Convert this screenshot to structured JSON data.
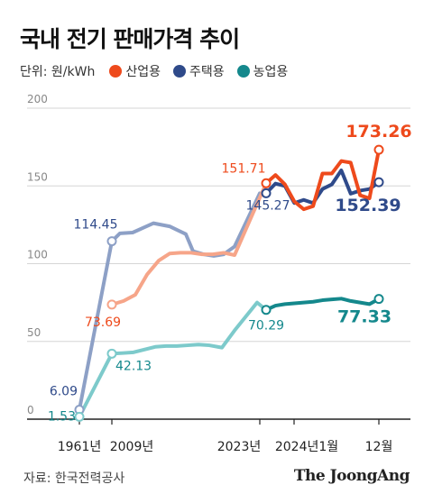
{
  "title": "국내 전기 판매가격 추이",
  "legend": {
    "unit_label": "단위: 원/kWh",
    "items": [
      {
        "label": "산업용",
        "color": "#ee4a1c"
      },
      {
        "label": "주택용",
        "color": "#2f4a8a"
      },
      {
        "label": "농업용",
        "color": "#14888c"
      }
    ]
  },
  "source": "자료: 한국전력공사",
  "brand": "The JoongAng",
  "chart_data": {
    "type": "line",
    "ylim": [
      0,
      200
    ],
    "yticks": [
      0,
      50,
      100,
      150,
      200
    ],
    "grid": true,
    "x_labels": [
      "1961년",
      "2009년",
      "2023년",
      "2024년1월",
      "12월"
    ],
    "series": [
      {
        "name": "주택용",
        "color_hist": "#8da0c6",
        "color_recent": "#2f4a8a",
        "history": [
          6.09,
          114.45,
          119.5,
          120,
          126,
          124,
          119,
          108,
          106,
          105,
          106,
          111,
          145.27
        ],
        "recent": [
          145.27,
          151.5,
          150,
          139,
          141,
          139,
          148,
          151,
          160,
          145,
          147,
          148,
          152.39
        ],
        "markers": [
          {
            "kind": "h",
            "index": 0,
            "text": "6.09"
          },
          {
            "kind": "h",
            "index": 1,
            "text": "114.45"
          },
          {
            "kind": "r",
            "index": 0,
            "text": "145.27"
          },
          {
            "kind": "r",
            "index": 12,
            "text": "152.39",
            "big": true
          }
        ]
      },
      {
        "name": "산업용",
        "color_hist": "#f6a589",
        "color_recent": "#ee4a1c",
        "history": [
          73.69,
          76,
          80,
          93,
          102,
          106.5,
          107,
          107,
          106,
          106,
          107,
          105.5,
          151.71
        ],
        "recent": [
          151.71,
          157,
          151,
          140,
          135,
          137,
          158,
          158,
          166,
          165,
          144,
          142,
          173.26
        ],
        "markers": [
          {
            "kind": "h",
            "index": 0,
            "text": "73.69"
          },
          {
            "kind": "r",
            "index": 0,
            "text": "151.71"
          },
          {
            "kind": "r",
            "index": 12,
            "text": "173.26",
            "big": true
          }
        ]
      },
      {
        "name": "농업용",
        "color_hist": "#7dcacb",
        "color_recent": "#14888c",
        "history": [
          1.53,
          42.13,
          42.5,
          43,
          46.5,
          47,
          47,
          47.5,
          48,
          47.5,
          46,
          57,
          75,
          70.29
        ],
        "recent": [
          70.29,
          73,
          74,
          74.5,
          75,
          75.5,
          76.5,
          77,
          77.5,
          76,
          75,
          74,
          77.33
        ],
        "markers": [
          {
            "kind": "h",
            "index": 0,
            "text": "1.53"
          },
          {
            "kind": "h",
            "index": 1,
            "text": "42.13"
          },
          {
            "kind": "r",
            "index": 0,
            "text": "70.29"
          },
          {
            "kind": "r",
            "index": 12,
            "text": "77.33",
            "big": true
          }
        ]
      }
    ]
  }
}
